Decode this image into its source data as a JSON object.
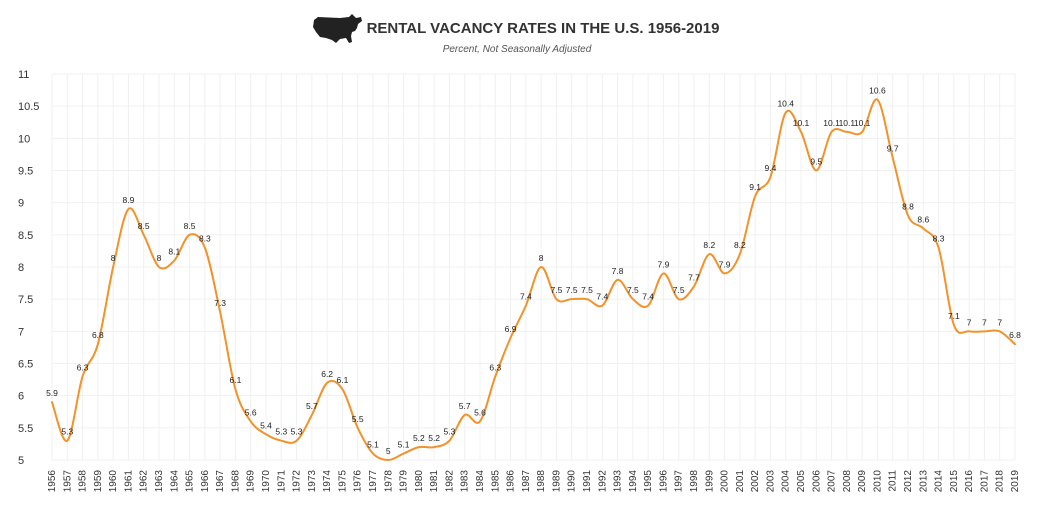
{
  "header": {
    "title": "RENTAL VACANCY RATES IN THE U.S. 1956-2019",
    "subtitle": "Percent, Not Seasonally Adjusted",
    "logo_icon": "usa-map-icon"
  },
  "colors": {
    "line": "#F2922B",
    "text": "#333333",
    "grid": "#f0f0f0"
  },
  "chart_data": {
    "type": "line",
    "title": "RENTAL VACANCY RATES IN THE U.S. 1956-2019",
    "subtitle": "Percent, Not Seasonally Adjusted",
    "xlabel": "",
    "ylabel": "",
    "ylim": [
      5,
      11
    ],
    "yticks": [
      "5",
      "5.5",
      "6",
      "6.5",
      "7",
      "7.5",
      "8",
      "8.5",
      "9",
      "9.5",
      "10",
      "10.5",
      "11"
    ],
    "grid": true,
    "legend": "none",
    "x": [
      "1956",
      "1957",
      "1958",
      "1959",
      "1960",
      "1961",
      "1962",
      "1963",
      "1964",
      "1965",
      "1966",
      "1967",
      "1968",
      "1969",
      "1970",
      "1971",
      "1972",
      "1973",
      "1974",
      "1975",
      "1976",
      "1977",
      "1978",
      "1979",
      "1980",
      "1981",
      "1982",
      "1983",
      "1984",
      "1985",
      "1986",
      "1987",
      "1988",
      "1989",
      "1990",
      "1991",
      "1992",
      "1993",
      "1994",
      "1995",
      "1996",
      "1997",
      "1998",
      "1999",
      "2000",
      "2001",
      "2002",
      "2003",
      "2004",
      "2005",
      "2006",
      "2007",
      "2008",
      "2009",
      "2010",
      "2011",
      "2012",
      "2013",
      "2014",
      "2015",
      "2016",
      "2017",
      "2018",
      "2019"
    ],
    "series": [
      {
        "values": [
          5.9,
          5.3,
          6.3,
          6.8,
          8,
          8.9,
          8.5,
          8,
          8.1,
          8.5,
          8.3,
          7.3,
          6.1,
          5.6,
          5.4,
          5.3,
          5.3,
          5.7,
          6.2,
          6.1,
          5.5,
          5.1,
          5,
          5.1,
          5.2,
          5.2,
          5.3,
          5.7,
          5.6,
          6.3,
          6.9,
          7.4,
          8,
          7.5,
          7.5,
          7.5,
          7.4,
          7.8,
          7.5,
          7.4,
          7.9,
          7.5,
          7.7,
          8.2,
          7.9,
          8.2,
          9.1,
          9.4,
          10.4,
          10.1,
          9.5,
          10.1,
          10.1,
          10.1,
          10.6,
          9.7,
          8.8,
          8.6,
          8.3,
          7.1,
          7,
          7,
          7,
          6.8
        ],
        "labels": [
          "5.9",
          "5.3",
          "6.3",
          "6.8",
          "8",
          "8.9",
          "8.5",
          "8",
          "8.1",
          "8.5",
          "8.3",
          "7.3",
          "6.1",
          "5.6",
          "5.4",
          "5.3",
          "5.3",
          "5.7",
          "6.2",
          "6.1",
          "5.5",
          "5.1",
          "5",
          "5.1",
          "5.2",
          "5.2",
          "5.3",
          "5.7",
          "5.6",
          "6.3",
          "6.9",
          "7.4",
          "8",
          "7.5",
          "7.5",
          "7.5",
          "7.4",
          "7.8",
          "7.5",
          "7.4",
          "7.9",
          "7.5",
          "7.7",
          "8.2",
          "7.9",
          "8.2",
          "9.1",
          "9.4",
          "10.4",
          "10.1",
          "9.5",
          "10.1",
          "10.1",
          "10.1",
          "10.6",
          "9.7",
          "8.8",
          "8.6",
          "8.3",
          "7.1",
          "7",
          "7",
          "7",
          "6.8"
        ]
      }
    ]
  }
}
